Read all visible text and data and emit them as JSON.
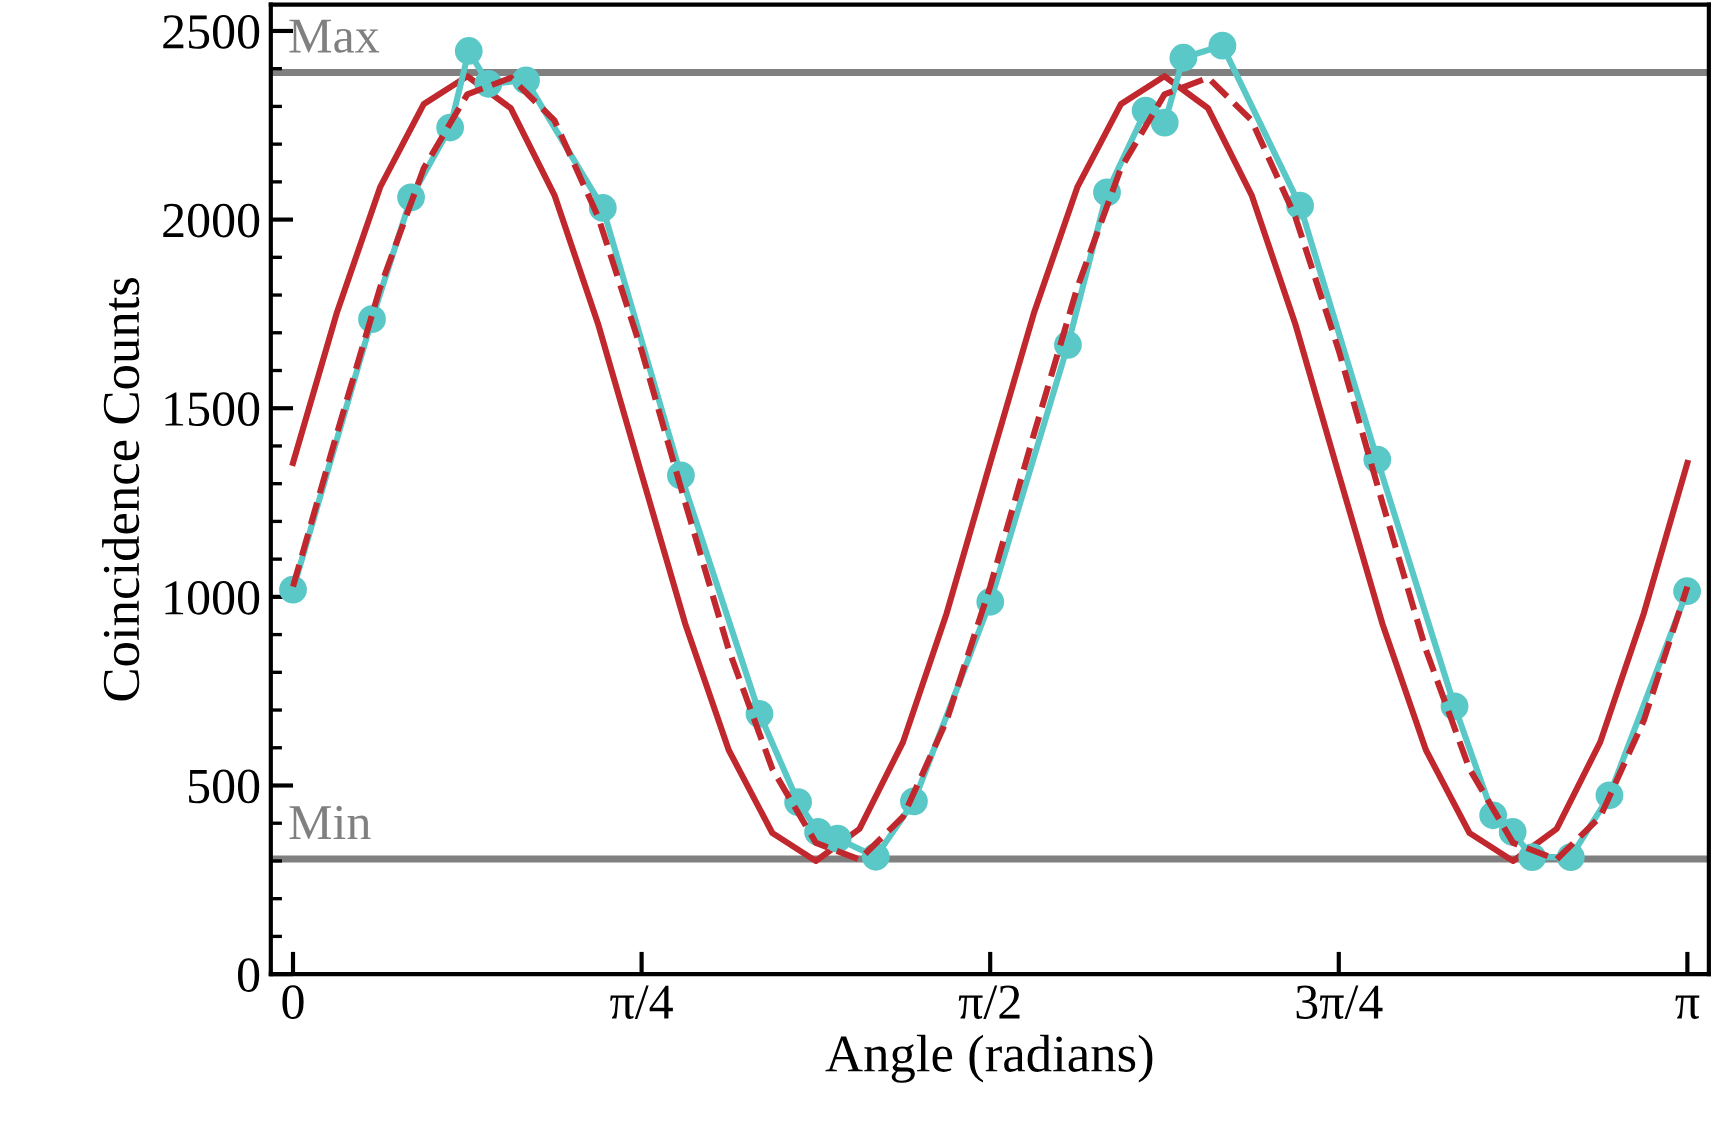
{
  "chart_data": {
    "type": "line",
    "xlabel": "Angle (radians)",
    "ylabel": "Coincidence Counts",
    "xlim": [
      -0.05,
      3.19
    ],
    "ylim": [
      0,
      2570
    ],
    "xticks": [
      {
        "value": 0,
        "label": "0"
      },
      {
        "value": 0.7854,
        "label": "π/4"
      },
      {
        "value": 1.5708,
        "label": "π/2"
      },
      {
        "value": 2.3562,
        "label": "3π/4"
      },
      {
        "value": 3.1416,
        "label": "π"
      }
    ],
    "yticks": [
      0,
      500,
      1000,
      1500,
      2000,
      2500
    ],
    "grid": false,
    "legend": false,
    "ref_lines": [
      {
        "axis": "y",
        "value": 2390,
        "label": "Max",
        "color": "#808080"
      },
      {
        "axis": "y",
        "value": 305,
        "label": "Min",
        "color": "#808080"
      }
    ],
    "series": [
      {
        "color": "#c0282d",
        "line_style": "solid",
        "marker": "none",
        "x": [
          0,
          0.0982,
          0.1963,
          0.2945,
          0.3927,
          0.4909,
          0.589,
          0.6872,
          0.7854,
          0.8836,
          0.9817,
          1.0799,
          1.1781,
          1.2763,
          1.3744,
          1.4726,
          1.5708,
          1.669,
          1.7671,
          1.8653,
          1.9635,
          2.0617,
          2.1598,
          2.258,
          2.3562,
          2.4544,
          2.5525,
          2.6507,
          2.7489,
          2.8471,
          2.9452,
          3.0434,
          3.1416
        ],
        "values": [
          1355,
          1751,
          2086,
          2306,
          2380,
          2295,
          2065,
          1724,
          1325,
          929,
          594,
          374,
          300,
          385,
          615,
          956,
          1355,
          1751,
          2086,
          2306,
          2380,
          2295,
          2065,
          1724,
          1325,
          929,
          594,
          374,
          300,
          385,
          615,
          956,
          1355
        ]
      },
      {
        "color": "#c0282d",
        "line_style": "dashed",
        "marker": "none",
        "x": [
          0,
          0.0982,
          0.1963,
          0.2945,
          0.3927,
          0.4909,
          0.589,
          0.6872,
          0.7854,
          0.8836,
          0.9817,
          1.0799,
          1.1781,
          1.2763,
          1.3744,
          1.4726,
          1.5708,
          1.669,
          1.7671,
          1.8653,
          1.9635,
          2.0617,
          2.1598,
          2.258,
          2.3562,
          2.4544,
          2.5525,
          2.6507,
          2.7489,
          2.8471,
          2.9452,
          3.0434,
          3.1416
        ],
        "values": [
          1027,
          1430,
          1820,
          2136,
          2332,
          2376,
          2263,
          2008,
          1653,
          1250,
          860,
          544,
          348,
          304,
          417,
          672,
          1027,
          1430,
          1820,
          2136,
          2332,
          2376,
          2263,
          2008,
          1653,
          1250,
          860,
          544,
          348,
          304,
          417,
          672,
          1027
        ]
      },
      {
        "color": "#5bc8c8",
        "line_style": "solid",
        "marker": "circle",
        "x": [
          0.0,
          0.178,
          0.266,
          0.354,
          0.396,
          0.44,
          0.525,
          0.698,
          0.874,
          1.051,
          1.138,
          1.183,
          1.227,
          1.313,
          1.399,
          1.571,
          1.746,
          1.834,
          1.921,
          1.964,
          2.006,
          2.094,
          2.269,
          2.443,
          2.617,
          2.704,
          2.748,
          2.792,
          2.879,
          2.966,
          3.141
        ],
        "values": [
          1019,
          1736,
          2059,
          2244,
          2447,
          2360,
          2369,
          2031,
          1322,
          690,
          456,
          377,
          359,
          311,
          458,
          987,
          1668,
          2072,
          2289,
          2257,
          2429,
          2461,
          2037,
          1364,
          710,
          421,
          377,
          310,
          310,
          474,
          1015
        ]
      }
    ]
  }
}
